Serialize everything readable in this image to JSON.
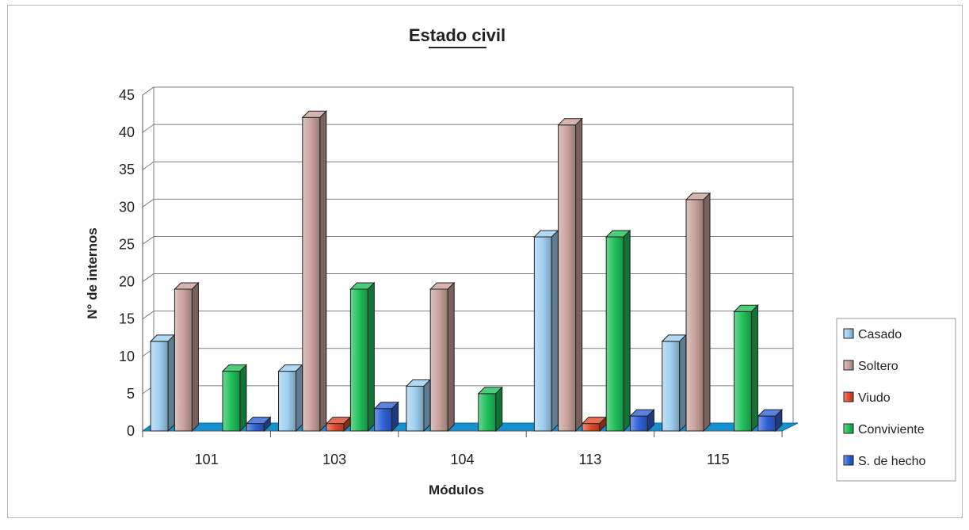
{
  "chart_data": {
    "type": "bar",
    "title": "Estado civil",
    "xlabel": "Módulos",
    "ylabel": "N° de internos",
    "categories": [
      "101",
      "103",
      "104",
      "113",
      "115"
    ],
    "ylim": [
      0,
      45
    ],
    "yticks": [
      "0",
      "5",
      "10",
      "15",
      "20",
      "25",
      "30",
      "35",
      "40",
      "45"
    ],
    "grid": true,
    "legend_position": "right",
    "series": [
      {
        "name": "Casado",
        "values": [
          12,
          8,
          6,
          26,
          12
        ],
        "color": "#9fd0f0"
      },
      {
        "name": "Soltero",
        "values": [
          19,
          42,
          19,
          41,
          31
        ],
        "color": "#c9a29c"
      },
      {
        "name": "Viudo",
        "values": [
          0,
          1,
          0,
          1,
          0
        ],
        "color": "#e04a2a"
      },
      {
        "name": "Conviviente",
        "values": [
          8,
          19,
          5,
          26,
          16
        ],
        "color": "#1fc05a"
      },
      {
        "name": "S. de hecho",
        "values": [
          1,
          3,
          0,
          2,
          2
        ],
        "color": "#2f62d8"
      }
    ],
    "floor_color": "#1790d0"
  }
}
